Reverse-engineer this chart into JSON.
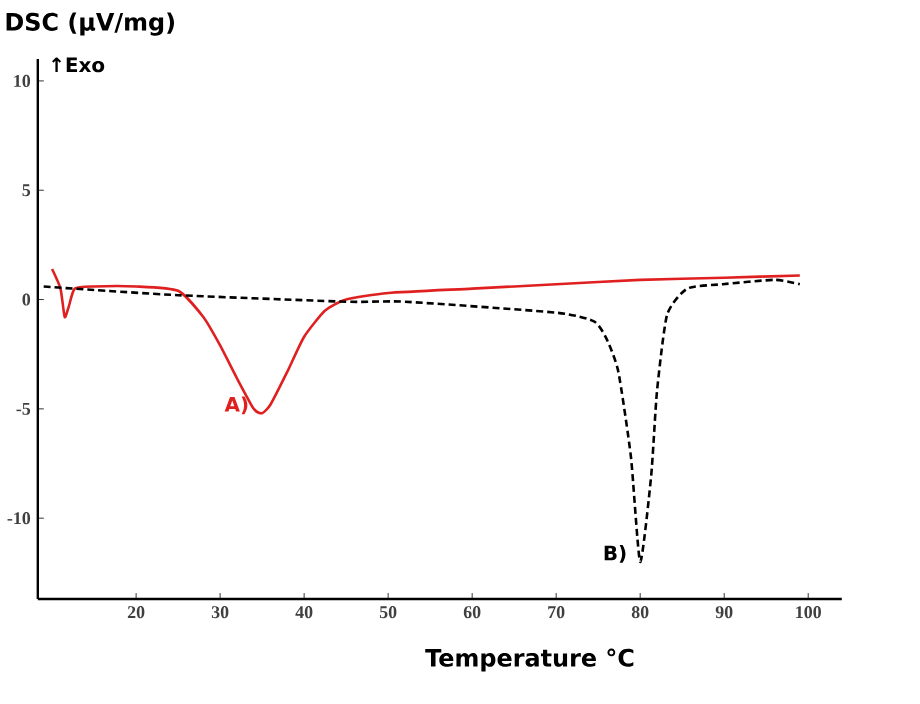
{
  "chart_data": {
    "type": "line",
    "ylabel": "DSC (µV/mg)",
    "xlabel": "Temperature °C",
    "xlim": [
      8.3,
      104
    ],
    "ylim": [
      -13.7,
      11
    ],
    "xticks": [
      20,
      30,
      40,
      50,
      60,
      70,
      80,
      90,
      100
    ],
    "yticks": [
      -10,
      -5,
      0,
      5,
      10
    ],
    "grid": false,
    "marker": "none",
    "annotations": [
      "↑Exo",
      {
        "text": "A)",
        "x": 35,
        "y": -5.2
      },
      {
        "text": "B)",
        "x": 80,
        "y": -12.0
      }
    ],
    "series": [
      {
        "color": "#e02020",
        "line_style": "solid",
        "x": [
          10,
          11,
          11.5,
          12,
          12.7,
          15,
          20,
          25,
          28,
          30,
          32,
          34,
          35,
          36,
          38,
          40,
          42.5,
          45,
          50,
          60,
          70,
          80,
          90,
          99
        ],
        "values": [
          1.4,
          0.5,
          -0.8,
          -0.3,
          0.5,
          0.6,
          0.6,
          0.4,
          -0.8,
          -2.1,
          -3.6,
          -5.0,
          -5.2,
          -4.8,
          -3.3,
          -1.7,
          -0.5,
          0.0,
          0.3,
          0.5,
          0.7,
          0.9,
          1.0,
          1.1
        ]
      },
      {
        "color": "#000000",
        "line_style": "dashed",
        "x": [
          9,
          12.5,
          25,
          45,
          52,
          70,
          74.5,
          76,
          77.4,
          78.9,
          80,
          81.3,
          82,
          83.2,
          85.6,
          89.8,
          96,
          99
        ],
        "values": [
          0.6,
          0.5,
          0.2,
          -0.1,
          -0.1,
          -0.6,
          -1.0,
          -1.8,
          -3.3,
          -7.2,
          -12.0,
          -8.1,
          -4.2,
          -0.7,
          0.5,
          0.7,
          0.9,
          0.7
        ]
      }
    ]
  }
}
